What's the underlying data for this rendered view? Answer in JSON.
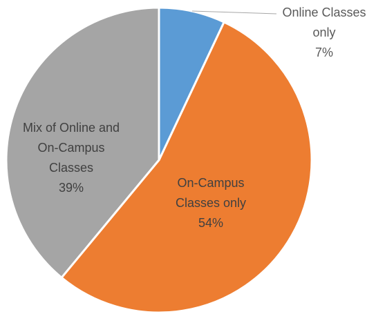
{
  "chart_data": {
    "type": "pie",
    "categories": [
      "Online Classes only",
      "On-Campus Classes only",
      "Mix of Online and On-Campus Classes"
    ],
    "values": [
      7,
      54,
      39
    ],
    "value_labels": [
      "7%",
      "54%",
      "39%"
    ],
    "colors": [
      "#5b9bd5",
      "#ed7d31",
      "#a5a5a5"
    ]
  }
}
